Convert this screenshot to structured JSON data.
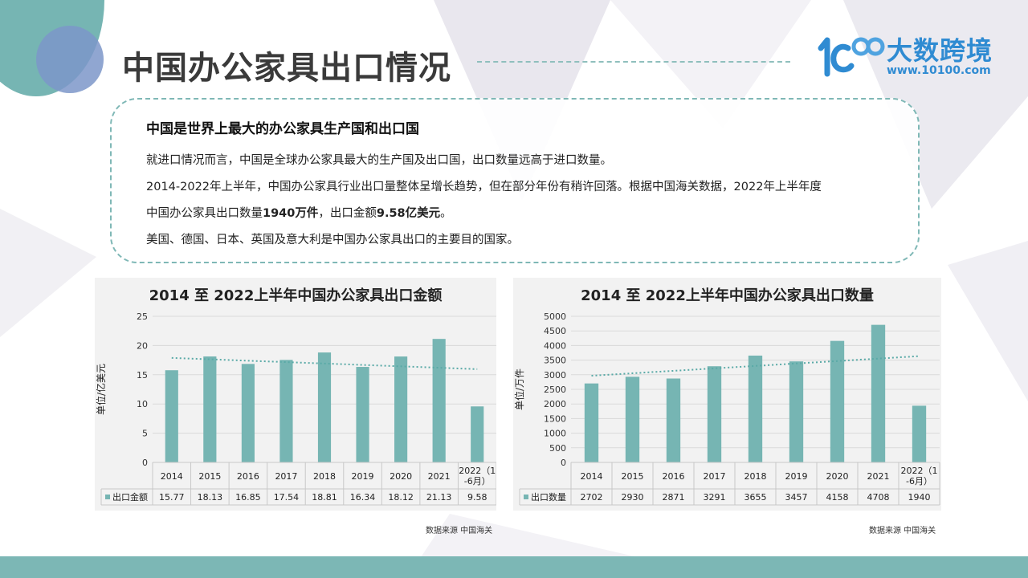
{
  "header": {
    "title": "中国办公家具出口情况"
  },
  "logo": {
    "brand": "大数跨境",
    "url": "www.10100.com"
  },
  "info": {
    "heading": "中国是世界上最大的办公家具生产国和出口国",
    "line1": "就进口情况而言，中国是全球办公家具最大的生产国及出口国，出口数量远高于进口数量。",
    "line2": "2014-2022年上半年，中国办公家具行业出口量整体呈增长趋势，但在部分年份有稍许回落。根据中国海关数据，2022年上半年度",
    "line3_a": "中国办公家具出口数量",
    "line3_b": "1940万件",
    "line3_c": "，出口金额",
    "line3_d": "9.58亿美元",
    "line3_e": "。",
    "line4": "美国、德国、日本、英国及意大利是中国办公家具出口的主要目的国家。"
  },
  "colors": {
    "bar": "#76b5b3",
    "trend": "#5aaaa7",
    "grid": "#d9d9d9",
    "panel": "#f2f2f2"
  },
  "chart_data": [
    {
      "type": "bar",
      "title": "2014 至 2022上半年中国办公家具出口金额",
      "ylabel": "单位/亿美元",
      "xlabel": "",
      "categories": [
        "2014",
        "2015",
        "2016",
        "2017",
        "2018",
        "2019",
        "2020",
        "2021",
        "2022（1-6月）"
      ],
      "series": [
        {
          "name": "出口金额",
          "values": [
            15.77,
            18.13,
            16.85,
            17.54,
            18.81,
            16.34,
            18.12,
            21.13,
            9.58
          ]
        }
      ],
      "value_labels": [
        "15.77",
        "18.13",
        "16.85",
        "17.54",
        "18.81",
        "16.34",
        "18.12",
        "21.13",
        "9.58"
      ],
      "ylim": [
        0,
        25
      ],
      "yticks": [
        0,
        5,
        10,
        15,
        20,
        25
      ],
      "trendline": "linear",
      "grid": true,
      "data_table": true,
      "source": "数据来源 中国海关"
    },
    {
      "type": "bar",
      "title": "2014 至 2022上半年中国办公家具出口数量",
      "ylabel": "单位/万件",
      "xlabel": "",
      "categories": [
        "2014",
        "2015",
        "2016",
        "2017",
        "2018",
        "2019",
        "2020",
        "2021",
        "2022（1-6月）"
      ],
      "series": [
        {
          "name": "出口数量",
          "values": [
            2702,
            2930,
            2871,
            3291,
            3655,
            3457,
            4158,
            4708,
            1940
          ]
        }
      ],
      "value_labels": [
        "2702",
        "2930",
        "2871",
        "3291",
        "3655",
        "3457",
        "4158",
        "4708",
        "1940"
      ],
      "ylim": [
        0,
        5000
      ],
      "yticks": [
        0,
        500,
        1000,
        1500,
        2000,
        2500,
        3000,
        3500,
        4000,
        4500,
        5000
      ],
      "trendline": "linear",
      "grid": true,
      "data_table": true,
      "source": "数据来源 中国海关"
    }
  ]
}
